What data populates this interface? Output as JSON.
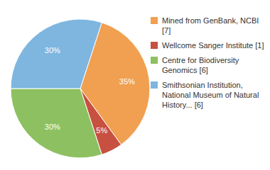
{
  "chart_data": {
    "type": "pie",
    "categories": [
      "Mined from GenBank, NCBI [7]",
      "Wellcome Sanger Institute [1]",
      "Centre for Biodiversity\nGenomics [6]",
      "Smithsonian Institution,\nNational Museum of Natural\nHistory... [6]"
    ],
    "values": [
      35,
      5,
      30,
      30
    ],
    "value_labels": [
      "35%",
      "5%",
      "30%",
      "30%"
    ],
    "colors": [
      "#f0a050",
      "#c85040",
      "#8dc060",
      "#7eb6e0"
    ],
    "data_labels": true,
    "legend": "right"
  }
}
